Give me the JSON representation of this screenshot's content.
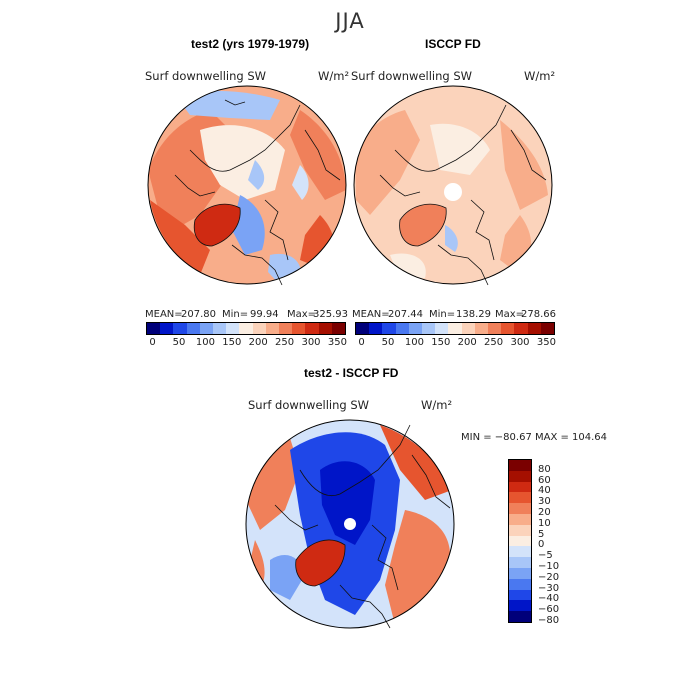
{
  "figure": {
    "season": "JJA",
    "palette_levels": [
      "#00007a",
      "#0015c8",
      "#1f47e8",
      "#4a78f0",
      "#7aa3f5",
      "#a8c6f8",
      "#d3e3fa",
      "#fbeee2",
      "#fbd3bb",
      "#f8ad8a",
      "#f0805a",
      "#e6552f",
      "#cf2a12",
      "#a50f00",
      "#7a0000"
    ]
  },
  "panels": [
    {
      "title": "test2 (yrs 1979-1979)",
      "variable": "Surf downwelling SW",
      "units": "W/m²",
      "stats": {
        "mean_label": "MEAN=",
        "mean": "207.80",
        "min_label": "Min=",
        "min": "99.94",
        "max_label": "Max=",
        "max": "325.93"
      },
      "colorbar_ticks": [
        "0",
        "50",
        "100",
        "150",
        "200",
        "250",
        "300",
        "350"
      ]
    },
    {
      "title": "ISCCP FD",
      "variable": "Surf downwelling SW",
      "units": "W/m²",
      "stats": {
        "mean_label": "MEAN=",
        "mean": "207.44",
        "min_label": "Min=",
        "min": "138.29",
        "max_label": "Max=",
        "max": "278.66"
      },
      "colorbar_ticks": [
        "0",
        "50",
        "100",
        "150",
        "200",
        "250",
        "300",
        "350"
      ]
    },
    {
      "title": "test2 - ISCCP FD",
      "variable": "Surf downwelling SW",
      "units": "W/m²",
      "stats_text": "MIN = −80.67  MAX = 104.64",
      "colorbar_ticks": [
        "80",
        "60",
        "40",
        "30",
        "20",
        "10",
        "5",
        "0",
        "−5",
        "−10",
        "−20",
        "−30",
        "−40",
        "−60",
        "−80"
      ]
    }
  ],
  "chart_data": [
    {
      "type": "heatmap",
      "title": "test2 (yrs 1979-1979)",
      "variable": "Surf downwelling SW",
      "units": "W/m²",
      "projection": "north polar stereographic",
      "mean": 207.8,
      "min": 99.94,
      "max": 325.93,
      "levels": [
        0,
        25,
        50,
        75,
        100,
        125,
        150,
        175,
        200,
        225,
        250,
        275,
        300,
        325,
        350
      ]
    },
    {
      "type": "heatmap",
      "title": "ISCCP FD",
      "variable": "Surf downwelling SW",
      "units": "W/m²",
      "projection": "north polar stereographic",
      "mean": 207.44,
      "min": 138.29,
      "max": 278.66,
      "levels": [
        0,
        25,
        50,
        75,
        100,
        125,
        150,
        175,
        200,
        225,
        250,
        275,
        300,
        325,
        350
      ]
    },
    {
      "type": "heatmap",
      "title": "test2 - ISCCP FD",
      "variable": "Surf downwelling SW",
      "units": "W/m²",
      "projection": "north polar stereographic",
      "min": -80.67,
      "max": 104.64,
      "levels": [
        -80,
        -60,
        -40,
        -30,
        -20,
        -10,
        -5,
        0,
        5,
        10,
        20,
        30,
        40,
        60,
        80
      ]
    }
  ]
}
